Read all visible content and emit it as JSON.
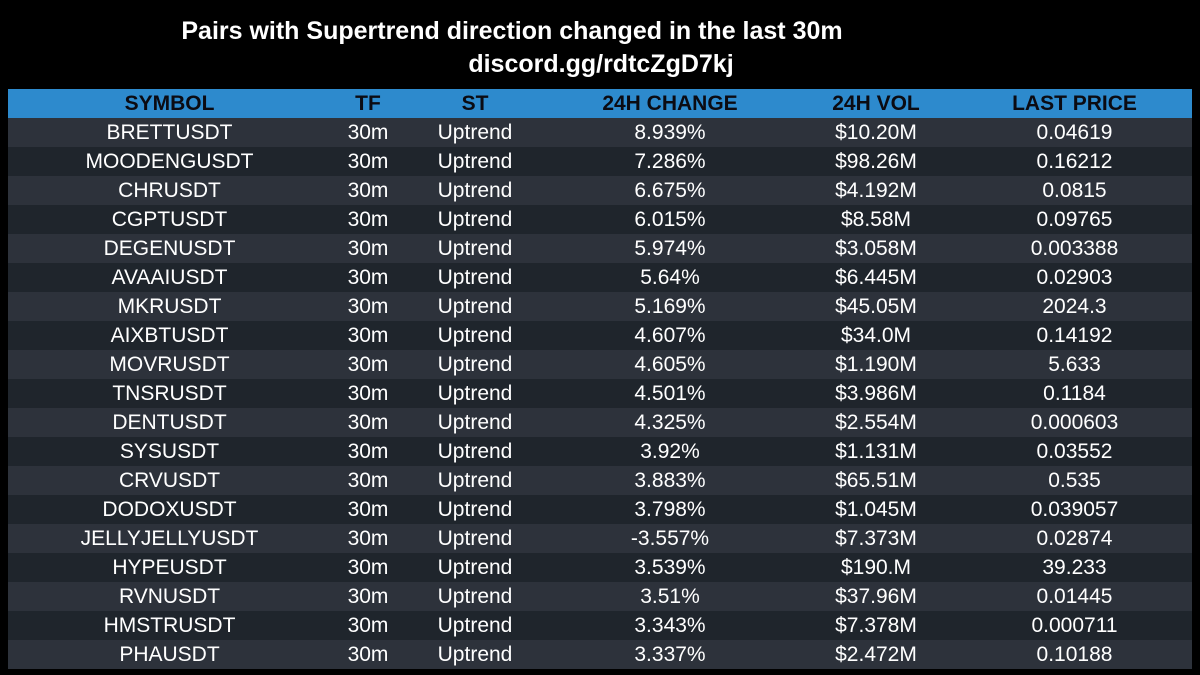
{
  "header": {
    "title": "Pairs with Supertrend direction changed in the last 30m",
    "subtitle": "discord.gg/rdtcZgD7kj"
  },
  "table": {
    "columns": [
      "SYMBOL",
      "TF",
      "ST",
      "24H CHANGE",
      "24H VOL",
      "LAST PRICE"
    ],
    "rows": [
      {
        "symbol": "BRETTUSDT",
        "tf": "30m",
        "st": "Uptrend",
        "change": "8.939%",
        "vol": "$10.20M",
        "price": "0.04619"
      },
      {
        "symbol": "MOODENGUSDT",
        "tf": "30m",
        "st": "Uptrend",
        "change": "7.286%",
        "vol": "$98.26M",
        "price": "0.16212"
      },
      {
        "symbol": "CHRUSDT",
        "tf": "30m",
        "st": "Uptrend",
        "change": "6.675%",
        "vol": "$4.192M",
        "price": "0.0815"
      },
      {
        "symbol": "CGPTUSDT",
        "tf": "30m",
        "st": "Uptrend",
        "change": "6.015%",
        "vol": "$8.58M",
        "price": "0.09765"
      },
      {
        "symbol": "DEGENUSDT",
        "tf": "30m",
        "st": "Uptrend",
        "change": "5.974%",
        "vol": "$3.058M",
        "price": "0.003388"
      },
      {
        "symbol": "AVAAIUSDT",
        "tf": "30m",
        "st": "Uptrend",
        "change": "5.64%",
        "vol": "$6.445M",
        "price": "0.02903"
      },
      {
        "symbol": "MKRUSDT",
        "tf": "30m",
        "st": "Uptrend",
        "change": "5.169%",
        "vol": "$45.05M",
        "price": "2024.3"
      },
      {
        "symbol": "AIXBTUSDT",
        "tf": "30m",
        "st": "Uptrend",
        "change": "4.607%",
        "vol": "$34.0M",
        "price": "0.14192"
      },
      {
        "symbol": "MOVRUSDT",
        "tf": "30m",
        "st": "Uptrend",
        "change": "4.605%",
        "vol": "$1.190M",
        "price": "5.633"
      },
      {
        "symbol": "TNSRUSDT",
        "tf": "30m",
        "st": "Uptrend",
        "change": "4.501%",
        "vol": "$3.986M",
        "price": "0.1184"
      },
      {
        "symbol": "DENTUSDT",
        "tf": "30m",
        "st": "Uptrend",
        "change": "4.325%",
        "vol": "$2.554M",
        "price": "0.000603"
      },
      {
        "symbol": "SYSUSDT",
        "tf": "30m",
        "st": "Uptrend",
        "change": "3.92%",
        "vol": "$1.131M",
        "price": "0.03552"
      },
      {
        "symbol": "CRVUSDT",
        "tf": "30m",
        "st": "Uptrend",
        "change": "3.883%",
        "vol": "$65.51M",
        "price": "0.535"
      },
      {
        "symbol": "DODOXUSDT",
        "tf": "30m",
        "st": "Uptrend",
        "change": "3.798%",
        "vol": "$1.045M",
        "price": "0.039057"
      },
      {
        "symbol": "JELLYJELLYUSDT",
        "tf": "30m",
        "st": "Uptrend",
        "change": "-3.557%",
        "vol": "$7.373M",
        "price": "0.02874"
      },
      {
        "symbol": "HYPEUSDT",
        "tf": "30m",
        "st": "Uptrend",
        "change": "3.539%",
        "vol": "$190.M",
        "price": "39.233"
      },
      {
        "symbol": "RVNUSDT",
        "tf": "30m",
        "st": "Uptrend",
        "change": "3.51%",
        "vol": "$37.96M",
        "price": "0.01445"
      },
      {
        "symbol": "HMSTRUSDT",
        "tf": "30m",
        "st": "Uptrend",
        "change": "3.343%",
        "vol": "$7.378M",
        "price": "0.000711"
      },
      {
        "symbol": "PHAUSDT",
        "tf": "30m",
        "st": "Uptrend",
        "change": "3.337%",
        "vol": "$2.472M",
        "price": "0.10188"
      }
    ]
  },
  "colors": {
    "background": "#000000",
    "header_row": "#2d8acd",
    "row_odd": "#2d323b",
    "row_even": "#1f252c",
    "text": "#ffffff"
  }
}
